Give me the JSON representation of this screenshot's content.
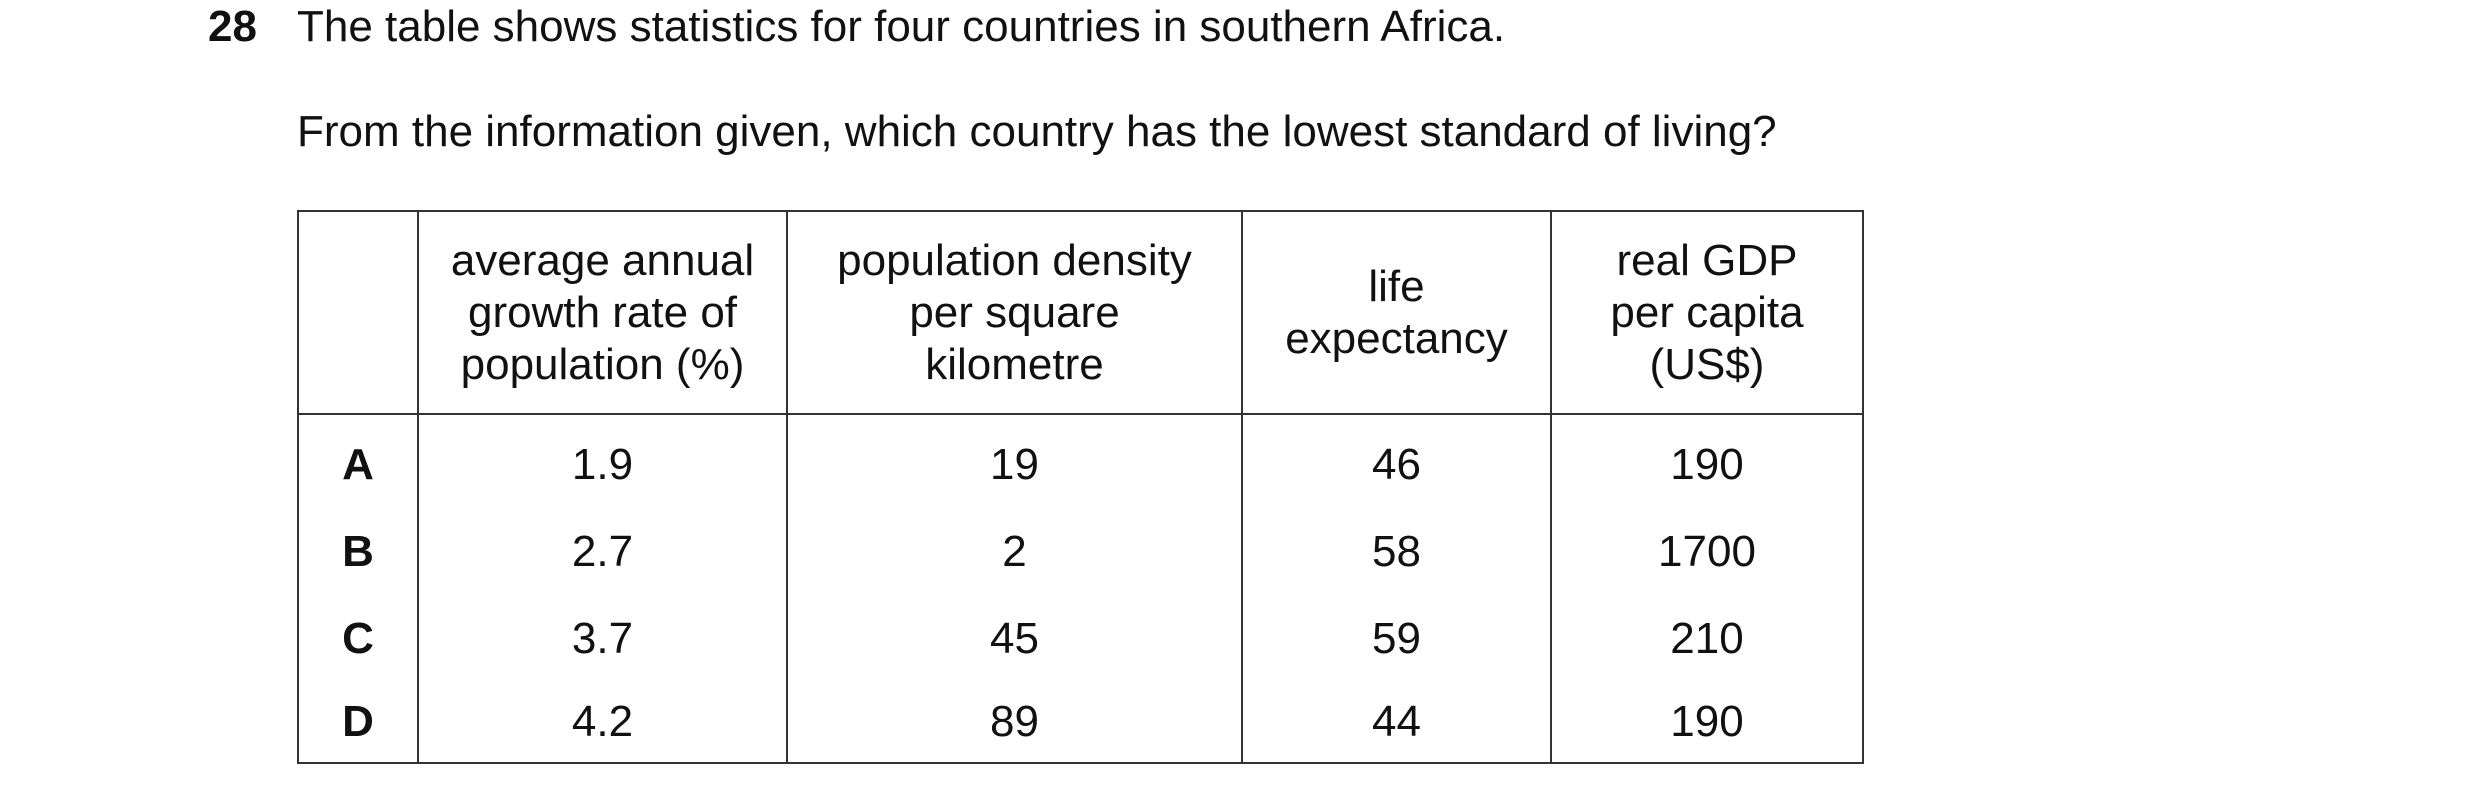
{
  "question": {
    "number": "28",
    "lines": [
      "The table shows statistics for four countries in southern Africa.",
      "From the information given, which country has the lowest standard of living?"
    ]
  },
  "table": {
    "headers": [
      [],
      [
        "average annual",
        "growth rate of",
        "population (%)"
      ],
      [
        "population density",
        "per square",
        "kilometre"
      ],
      [
        "life",
        "expectancy"
      ],
      [
        "real GDP",
        "per capita",
        "(US$)"
      ]
    ],
    "rows": [
      [
        "A",
        1.9,
        19,
        46,
        190
      ],
      [
        "B",
        2.7,
        2,
        58,
        1700
      ],
      [
        "C",
        3.7,
        45,
        59,
        210
      ],
      [
        "D",
        4.2,
        89,
        44,
        190
      ]
    ]
  }
}
